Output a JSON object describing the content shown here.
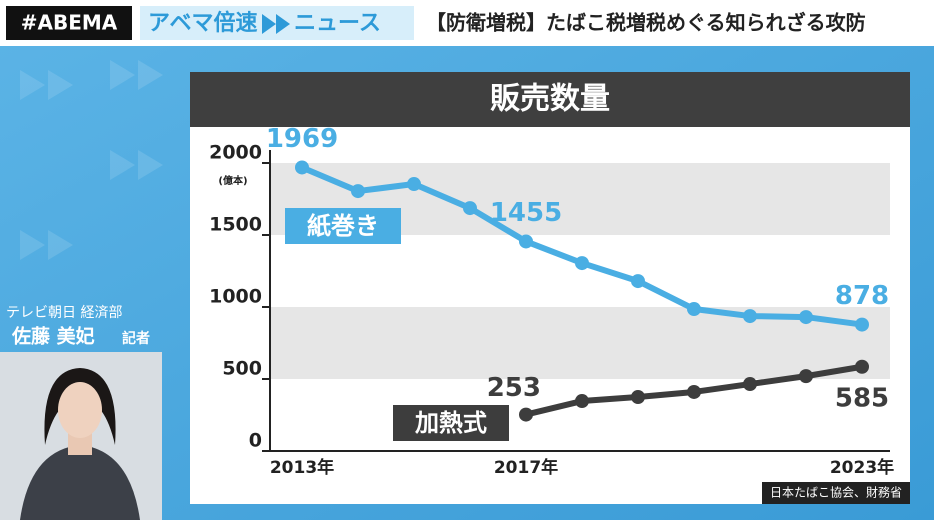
{
  "header": {
    "brand": "#ABEMA",
    "program_1": "アベマ倍速",
    "program_2": "ニュース",
    "headline": "【防衛増税】たばこ税増税めぐる知られざる攻防"
  },
  "reporter": {
    "affiliation": "テレビ朝日 経済部",
    "name": "佐藤 美妃",
    "role": "記者"
  },
  "chart_data": {
    "type": "line",
    "title": "販売数量",
    "y_unit": "(億本)",
    "source": "日本たばこ協会、財務省",
    "categories": [
      "2013年",
      null,
      null,
      null,
      "2017年",
      null,
      null,
      null,
      null,
      null,
      "2023年"
    ],
    "ylim": [
      0,
      2000
    ],
    "yticks": [
      0,
      500,
      1000,
      1500,
      2000
    ],
    "banded_grid": true,
    "series": [
      {
        "name": "紙巻き",
        "color": "#4aaee3",
        "values": [
          1969,
          1805,
          1854,
          1687,
          1455,
          1305,
          1180,
          986,
          937,
          930,
          878
        ],
        "label_indices": [
          0,
          4,
          10
        ]
      },
      {
        "name": "加熱式",
        "color": "#3d3d3d",
        "values": [
          null,
          null,
          null,
          null,
          253,
          347,
          375,
          410,
          465,
          520,
          585
        ],
        "label_indices": [
          4,
          10
        ]
      }
    ]
  }
}
